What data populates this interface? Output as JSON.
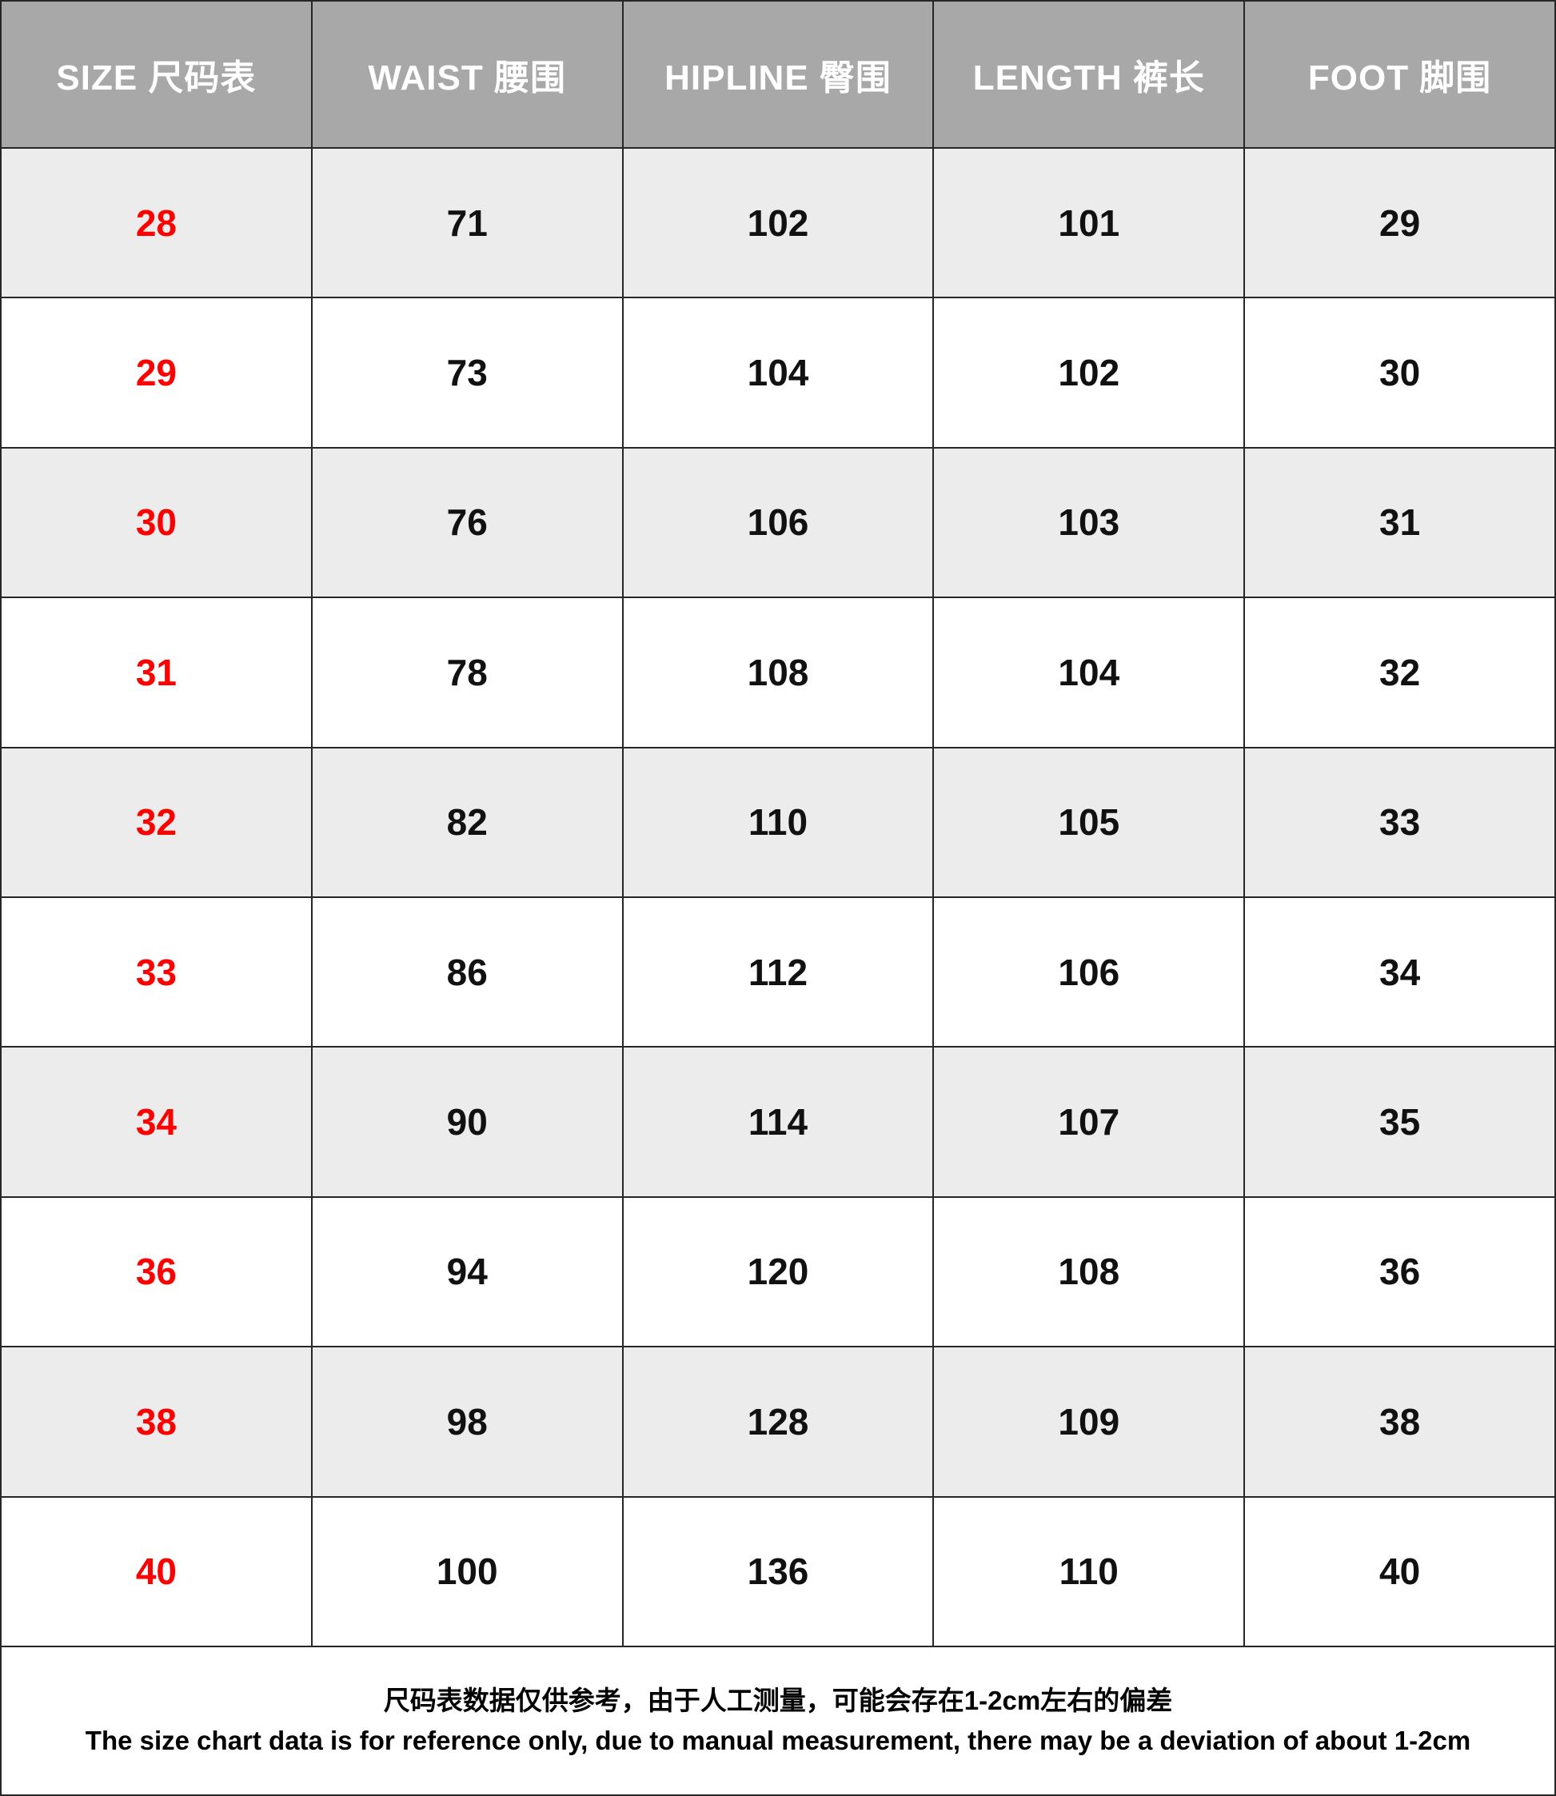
{
  "colors": {
    "header_bg": "#a8a8a8",
    "header_text": "#ffffff",
    "row_alt_bg": "#ececec",
    "row_bg": "#ffffff",
    "size_number_red": "#ff0000",
    "value_text": "#111111",
    "border": "#262626"
  },
  "table": {
    "headers": [
      "SIZE 尺码表",
      "WAIST 腰围",
      "HIPLINE 臀围",
      "LENGTH 裤长",
      "FOOT 脚围"
    ],
    "rows": [
      {
        "size": "28",
        "waist": "71",
        "hipline": "102",
        "length": "101",
        "foot": "29"
      },
      {
        "size": "29",
        "waist": "73",
        "hipline": "104",
        "length": "102",
        "foot": "30"
      },
      {
        "size": "30",
        "waist": "76",
        "hipline": "106",
        "length": "103",
        "foot": "31"
      },
      {
        "size": "31",
        "waist": "78",
        "hipline": "108",
        "length": "104",
        "foot": "32"
      },
      {
        "size": "32",
        "waist": "82",
        "hipline": "110",
        "length": "105",
        "foot": "33"
      },
      {
        "size": "33",
        "waist": "86",
        "hipline": "112",
        "length": "106",
        "foot": "34"
      },
      {
        "size": "34",
        "waist": "90",
        "hipline": "114",
        "length": "107",
        "foot": "35"
      },
      {
        "size": "36",
        "waist": "94",
        "hipline": "120",
        "length": "108",
        "foot": "36"
      },
      {
        "size": "38",
        "waist": "98",
        "hipline": "128",
        "length": "109",
        "foot": "38"
      },
      {
        "size": "40",
        "waist": "100",
        "hipline": "136",
        "length": "110",
        "foot": "40"
      }
    ]
  },
  "footer": {
    "note_zh": "尺码表数据仅供参考，由于人工测量，可能会存在1-2cm左右的偏差",
    "note_en": "The size chart data is for reference only, due to manual measurement, there may be a deviation of about 1-2cm"
  },
  "chart_data": {
    "type": "table",
    "title": "SIZE 尺码表",
    "columns": [
      "SIZE 尺码表",
      "WAIST 腰围",
      "HIPLINE 臀围",
      "LENGTH 裤长",
      "FOOT 脚围"
    ],
    "rows": [
      [
        28,
        71,
        102,
        101,
        29
      ],
      [
        29,
        73,
        104,
        102,
        30
      ],
      [
        30,
        76,
        106,
        103,
        31
      ],
      [
        31,
        78,
        108,
        104,
        32
      ],
      [
        32,
        82,
        110,
        105,
        33
      ],
      [
        33,
        86,
        112,
        106,
        34
      ],
      [
        34,
        90,
        114,
        107,
        35
      ],
      [
        36,
        94,
        120,
        108,
        36
      ],
      [
        38,
        98,
        128,
        109,
        38
      ],
      [
        40,
        100,
        136,
        110,
        40
      ]
    ],
    "annotations": [
      "尺码表数据仅供参考，由于人工测量，可能会存在1-2cm左右的偏差",
      "The size chart data is for reference only, due to manual measurement, there may be a deviation of about 1-2cm"
    ],
    "layout_hints": {
      "header_fill": "#a8a8a8",
      "zebra_striping": true,
      "first_column_color": "#ff0000"
    }
  }
}
